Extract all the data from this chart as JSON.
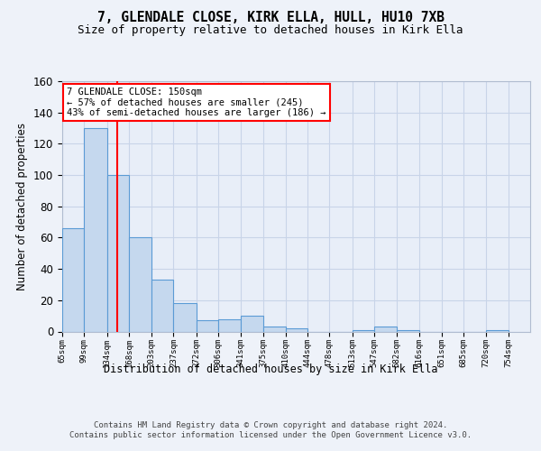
{
  "title1": "7, GLENDALE CLOSE, KIRK ELLA, HULL, HU10 7XB",
  "title2": "Size of property relative to detached houses in Kirk Ella",
  "xlabel": "Distribution of detached houses by size in Kirk Ella",
  "ylabel": "Number of detached properties",
  "bar_edges": [
    65,
    99,
    134,
    168,
    203,
    237,
    272,
    306,
    341,
    375,
    410,
    444,
    478,
    513,
    547,
    582,
    616,
    651,
    685,
    720,
    754
  ],
  "bar_heights": [
    66,
    130,
    100,
    60,
    33,
    18,
    7,
    8,
    10,
    3,
    2,
    0,
    0,
    1,
    3,
    1,
    0,
    0,
    0,
    1
  ],
  "bar_color": "#c5d8ee",
  "bar_edge_color": "#5b9bd5",
  "red_line_x": 150,
  "annotation_line1": "7 GLENDALE CLOSE: 150sqm",
  "annotation_line2": "← 57% of detached houses are smaller (245)",
  "annotation_line3": "43% of semi-detached houses are larger (186) →",
  "footer_text": "Contains HM Land Registry data © Crown copyright and database right 2024.\nContains public sector information licensed under the Open Government Licence v3.0.",
  "ylim": [
    0,
    160
  ],
  "bg_color": "#eef2f9",
  "plot_bg_color": "#e8eef8",
  "grid_color": "#c8d4e8",
  "title1_fontsize": 10.5,
  "title2_fontsize": 9
}
